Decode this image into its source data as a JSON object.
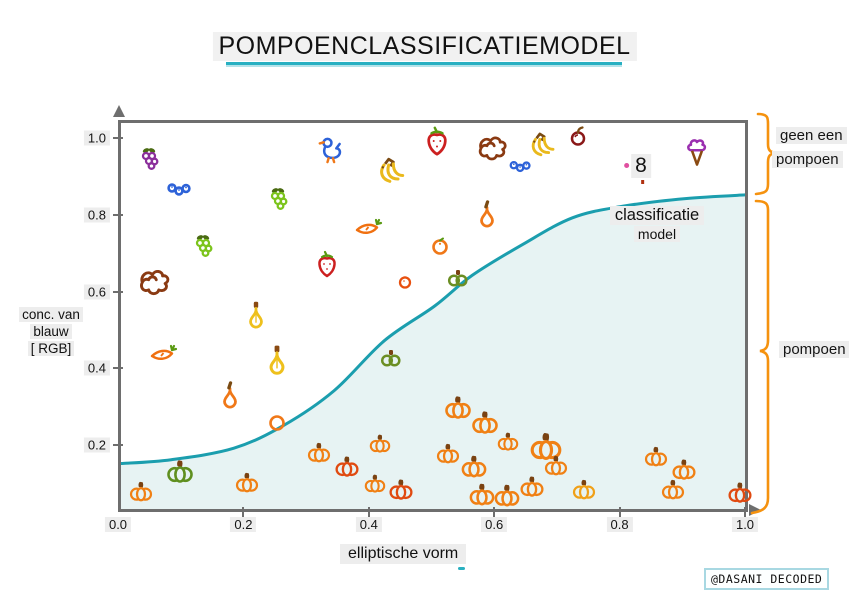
{
  "title": "POMPOENCLASSIFICATIEMODEL",
  "watermark": "@DASANI DECODED",
  "colors": {
    "curve": "#1b9eae",
    "curve_fill": "#e7f3f3",
    "bracket": "#f5920f",
    "axis": "#6e6e6e",
    "title_underline": "#28b0c2",
    "label_bg": "#ededed"
  },
  "right_labels": {
    "top_lines": [
      "geen een",
      "pompoen"
    ],
    "bottom": "pompoen"
  },
  "chart_data": {
    "type": "scatter",
    "title": "POMPOENCLASSIFICATIEMODEL",
    "xlabel": "elliptische vorm",
    "ylabel": "conc. van blauw [ RGB]",
    "ylabel_lines": [
      "conc. van",
      "blauw",
      "[ RGB]"
    ],
    "xlim": [
      0.0,
      1.0
    ],
    "ylim": [
      0.0,
      1.05
    ],
    "grid": false,
    "x_ticks": [
      0.0,
      0.2,
      0.4,
      0.6,
      0.8,
      1.0
    ],
    "x_tick_labels": [
      "0.0",
      "0.2",
      "0.4",
      "0.6",
      "0.8",
      "1.0"
    ],
    "y_ticks": [
      0.2,
      0.4,
      0.6,
      0.8,
      1.0
    ],
    "y_tick_labels": [
      "0.2",
      "0.4",
      "0.6",
      "0.8",
      "1.0"
    ],
    "curve": {
      "name": "classificatie model",
      "label_lines": [
        "classificatie",
        "model"
      ],
      "color": "#1b9eae",
      "fill": "#e7f3f3",
      "points": [
        [
          0.0,
          0.16
        ],
        [
          0.08,
          0.17
        ],
        [
          0.18,
          0.2
        ],
        [
          0.26,
          0.26
        ],
        [
          0.34,
          0.35
        ],
        [
          0.42,
          0.48
        ],
        [
          0.5,
          0.57
        ],
        [
          0.56,
          0.65
        ],
        [
          0.64,
          0.73
        ],
        [
          0.72,
          0.8
        ],
        [
          0.8,
          0.83
        ],
        [
          0.9,
          0.85
        ],
        [
          1.0,
          0.86
        ]
      ]
    },
    "annotations": {
      "above_curve_class": "geen een pompoen",
      "below_curve_class": "pompoen"
    },
    "item_colors": {
      "grapes-purple": "#8b2f9b",
      "grapes-green": "#7cc41c",
      "blueberries": "#2d62d8",
      "duck": "#2d62d8",
      "banana": "#eab91c",
      "strawberry": "#cc2020",
      "carrot": "#f07010",
      "squiggle": "#8a3a12",
      "apple-dark": "#8a1818",
      "icecream": "#9b2fb0",
      "pear-orange": "#f07818",
      "gourd-yellow": "#eec01c",
      "squash-olive": "#6b8e23",
      "tomato-small": "#e8500f",
      "orange-fruit": "#f07818",
      "ring-orange": "#f07818",
      "pumpkin": "#f08014",
      "pumpkin-red": "#e04a10",
      "pumpkin-yellow": "#f0a018",
      "pumpkin-green": "#5f8f1f",
      "eight": "#111111"
    },
    "points": [
      {
        "x": 0.053,
        "y": 0.948,
        "item": "grapes-purple"
      },
      {
        "x": 0.099,
        "y": 0.865,
        "item": "blueberries"
      },
      {
        "x": 0.258,
        "y": 0.844,
        "item": "grapes-green"
      },
      {
        "x": 0.343,
        "y": 0.969,
        "item": "duck",
        "size": 1.1
      },
      {
        "x": 0.435,
        "y": 0.911,
        "item": "banana",
        "size": 1.15
      },
      {
        "x": 0.509,
        "y": 0.992,
        "item": "strawberry",
        "size": 1.1
      },
      {
        "x": 0.598,
        "y": 0.977,
        "item": "squiggle",
        "size": 1.2
      },
      {
        "x": 0.676,
        "y": 0.979,
        "item": "banana",
        "size": 1.1
      },
      {
        "x": 0.734,
        "y": 1.005,
        "item": "apple-dark"
      },
      {
        "x": 0.643,
        "y": 0.924,
        "item": "blueberries",
        "size": 0.9
      },
      {
        "x": 0.834,
        "y": 0.927,
        "item": "eight",
        "label": "8"
      },
      {
        "x": 0.923,
        "y": 0.961,
        "item": "icecream",
        "size": 1.1
      },
      {
        "x": 0.139,
        "y": 0.721,
        "item": "grapes-green"
      },
      {
        "x": 0.059,
        "y": 0.628,
        "item": "squiggle",
        "size": 1.25
      },
      {
        "x": 0.399,
        "y": 0.771,
        "item": "carrot"
      },
      {
        "x": 0.333,
        "y": 0.672,
        "item": "strawberry"
      },
      {
        "x": 0.589,
        "y": 0.802,
        "item": "pear-orange",
        "size": 1.1
      },
      {
        "x": 0.458,
        "y": 0.628,
        "item": "tomato-small"
      },
      {
        "x": 0.514,
        "y": 0.719,
        "item": "orange-fruit"
      },
      {
        "x": 0.22,
        "y": 0.539,
        "item": "gourd-yellow",
        "size": 1.1
      },
      {
        "x": 0.072,
        "y": 0.443,
        "item": "carrot"
      },
      {
        "x": 0.254,
        "y": 0.422,
        "item": "gourd-yellow",
        "size": 1.2
      },
      {
        "x": 0.435,
        "y": 0.43,
        "item": "squash-olive"
      },
      {
        "x": 0.542,
        "y": 0.638,
        "item": "squash-olive"
      },
      {
        "x": 0.179,
        "y": 0.331,
        "item": "pear-orange",
        "size": 1.1
      },
      {
        "x": 0.254,
        "y": 0.258,
        "item": "ring-orange"
      },
      {
        "x": 0.099,
        "y": 0.13,
        "item": "pumpkin-green"
      },
      {
        "x": 0.037,
        "y": 0.078,
        "item": "pumpkin",
        "size": 0.85
      },
      {
        "x": 0.206,
        "y": 0.102,
        "item": "pumpkin",
        "size": 0.85
      },
      {
        "x": 0.321,
        "y": 0.18,
        "item": "pumpkin",
        "size": 0.85
      },
      {
        "x": 0.365,
        "y": 0.143,
        "item": "pumpkin-red",
        "size": 0.9
      },
      {
        "x": 0.418,
        "y": 0.203,
        "item": "pumpkin",
        "size": 0.8
      },
      {
        "x": 0.41,
        "y": 0.099,
        "item": "pumpkin",
        "size": 0.8
      },
      {
        "x": 0.451,
        "y": 0.083,
        "item": "pumpkin-red",
        "size": 0.9
      },
      {
        "x": 0.542,
        "y": 0.297,
        "item": "pumpkin"
      },
      {
        "x": 0.585,
        "y": 0.258,
        "item": "pumpkin"
      },
      {
        "x": 0.622,
        "y": 0.208,
        "item": "pumpkin",
        "size": 0.8
      },
      {
        "x": 0.683,
        "y": 0.195,
        "item": "pumpkin",
        "size": 1.2
      },
      {
        "x": 0.526,
        "y": 0.177,
        "item": "pumpkin",
        "size": 0.85
      },
      {
        "x": 0.568,
        "y": 0.143,
        "item": "pumpkin",
        "size": 0.95
      },
      {
        "x": 0.699,
        "y": 0.146,
        "item": "pumpkin",
        "size": 0.85
      },
      {
        "x": 0.581,
        "y": 0.07,
        "item": "pumpkin",
        "size": 0.95
      },
      {
        "x": 0.62,
        "y": 0.068,
        "item": "pumpkin",
        "size": 0.95
      },
      {
        "x": 0.66,
        "y": 0.091,
        "item": "pumpkin",
        "size": 0.9
      },
      {
        "x": 0.743,
        "y": 0.083,
        "item": "pumpkin-yellow",
        "size": 0.85
      },
      {
        "x": 0.858,
        "y": 0.169,
        "item": "pumpkin",
        "size": 0.85
      },
      {
        "x": 0.903,
        "y": 0.135,
        "item": "pumpkin",
        "size": 0.9
      },
      {
        "x": 0.885,
        "y": 0.083,
        "item": "pumpkin",
        "size": 0.85
      },
      {
        "x": 0.992,
        "y": 0.075,
        "item": "pumpkin-red",
        "size": 0.9
      }
    ]
  }
}
